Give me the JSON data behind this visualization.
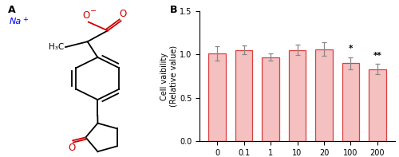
{
  "panel_b": {
    "categories": [
      "0",
      "0.1",
      "1",
      "10",
      "20",
      "100",
      "200"
    ],
    "values": [
      1.01,
      1.05,
      0.97,
      1.05,
      1.06,
      0.9,
      0.83
    ],
    "errors": [
      0.08,
      0.05,
      0.04,
      0.06,
      0.08,
      0.07,
      0.06
    ],
    "bar_color": "#f5c0c0",
    "bar_edge_color": "#d94040",
    "bar_width": 0.65,
    "ylim": [
      0.0,
      1.5
    ],
    "yticks": [
      0.0,
      0.5,
      1.0,
      1.5
    ],
    "ylabel_line1": "Cell vaibility",
    "ylabel_line2": "(Relative value)",
    "significance": [
      "",
      "",
      "",
      "",
      "",
      "*",
      "**"
    ],
    "title": "B"
  },
  "panel_a": {
    "title": "A",
    "na_label": "Na",
    "na_sup": "+"
  }
}
